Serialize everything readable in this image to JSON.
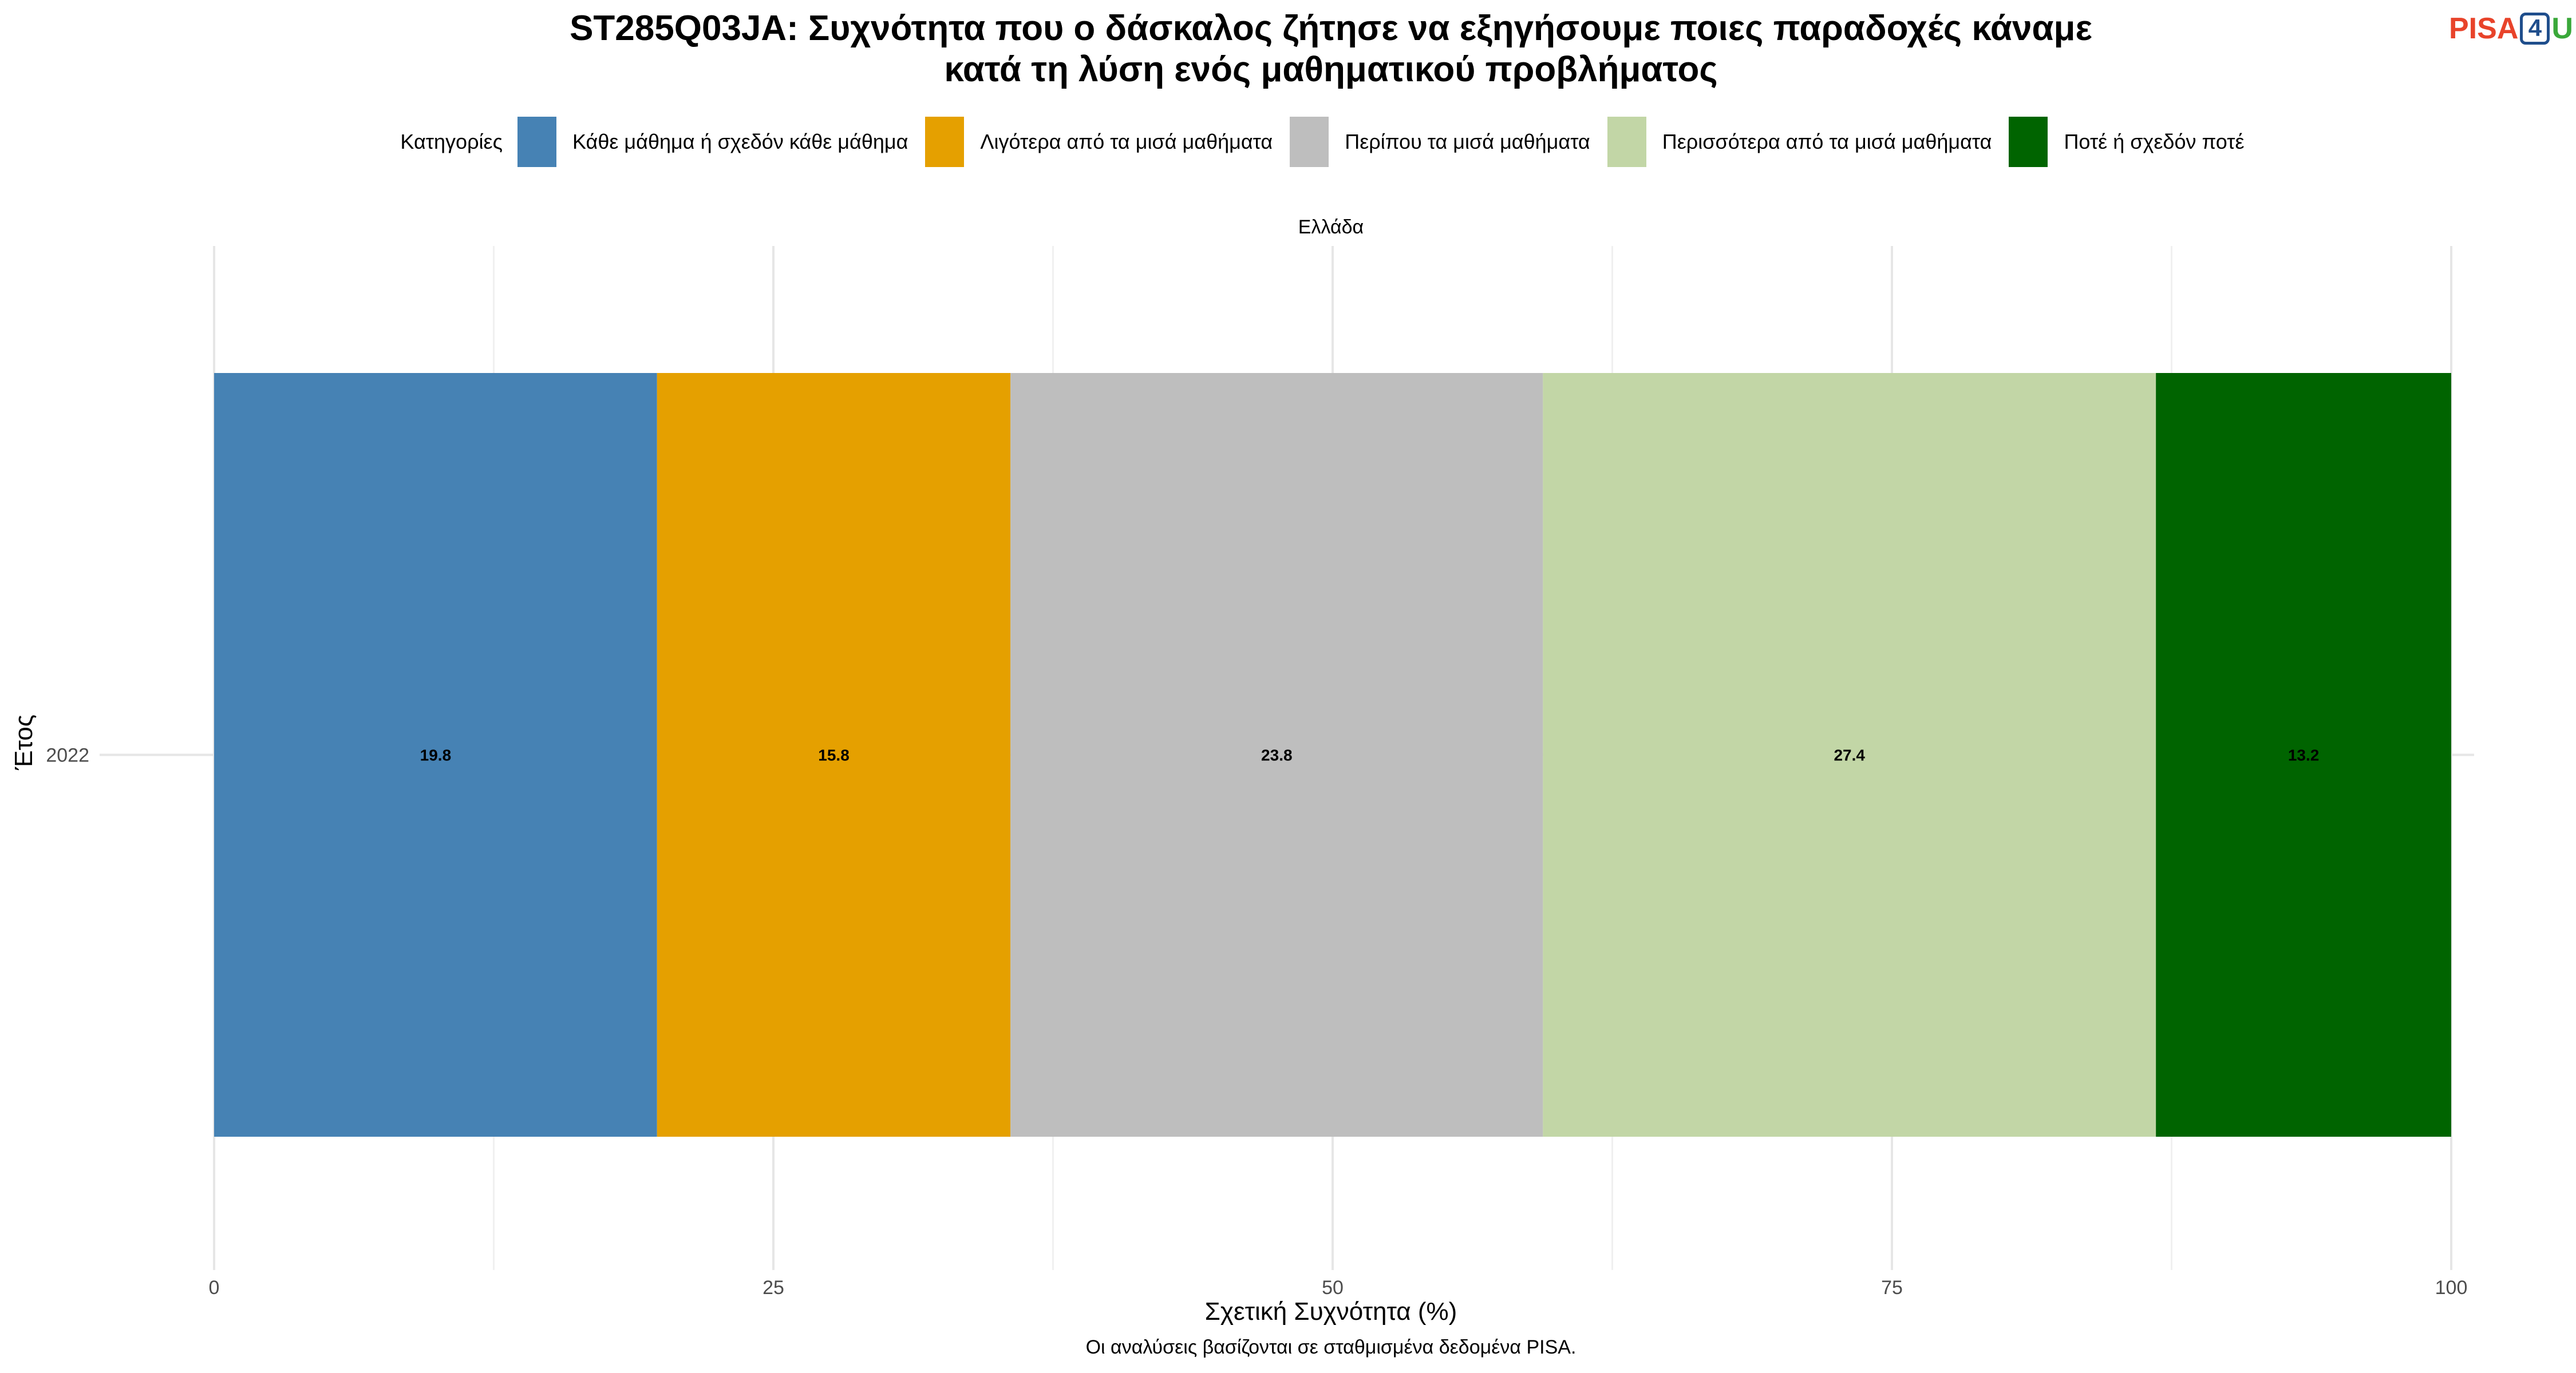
{
  "header": {
    "title_line1": "ST285Q03JA: Συχνότητα που ο δάσκαλος ζήτησε να εξηγήσουμε ποιες παραδοχές κάναμε",
    "title_line2": "κατά τη λύση ενός μαθηματικού προβλήματος",
    "logo": {
      "pisa": "PISA",
      "four": "4",
      "u": "U"
    }
  },
  "legend": {
    "title": "Κατηγορίες"
  },
  "facet": "Ελλάδα",
  "footer": {
    "caption": "Οι αναλύσεις βασίζονται σε σταθμισμένα δεδομένα PISA."
  },
  "chart_data": {
    "type": "bar",
    "orientation": "horizontal",
    "stacked": true,
    "categories": [
      "2022"
    ],
    "series": [
      {
        "name": "Κάθε μάθημα ή σχεδόν κάθε μάθημα",
        "values": [
          19.8
        ],
        "labels": [
          "19.8"
        ],
        "color": "#4682b4"
      },
      {
        "name": "Λιγότερα από τα μισά μαθήματα",
        "values": [
          15.8
        ],
        "labels": [
          "15.8"
        ],
        "color": "#e5a000"
      },
      {
        "name": "Περίπου τα μισά μαθήματα",
        "values": [
          23.8
        ],
        "labels": [
          "23.8"
        ],
        "color": "#bebebe"
      },
      {
        "name": "Περισσότερα από τα μισά μαθήματα",
        "values": [
          27.4
        ],
        "labels": [
          "27.4"
        ],
        "color": "#c2d6a6"
      },
      {
        "name": "Ποτέ ή σχεδόν ποτέ",
        "values": [
          13.2
        ],
        "labels": [
          "13.2"
        ],
        "color": "#006400"
      }
    ],
    "xlabel": "Σχετική Συχνότητα (%)",
    "ylabel": "Έτος",
    "xlim": [
      0,
      100
    ],
    "xticks": [
      0,
      25,
      50,
      75,
      100
    ],
    "xtick_labels": [
      "0",
      "25",
      "50",
      "75",
      "100"
    ],
    "grid": true,
    "legend_position": "top"
  }
}
